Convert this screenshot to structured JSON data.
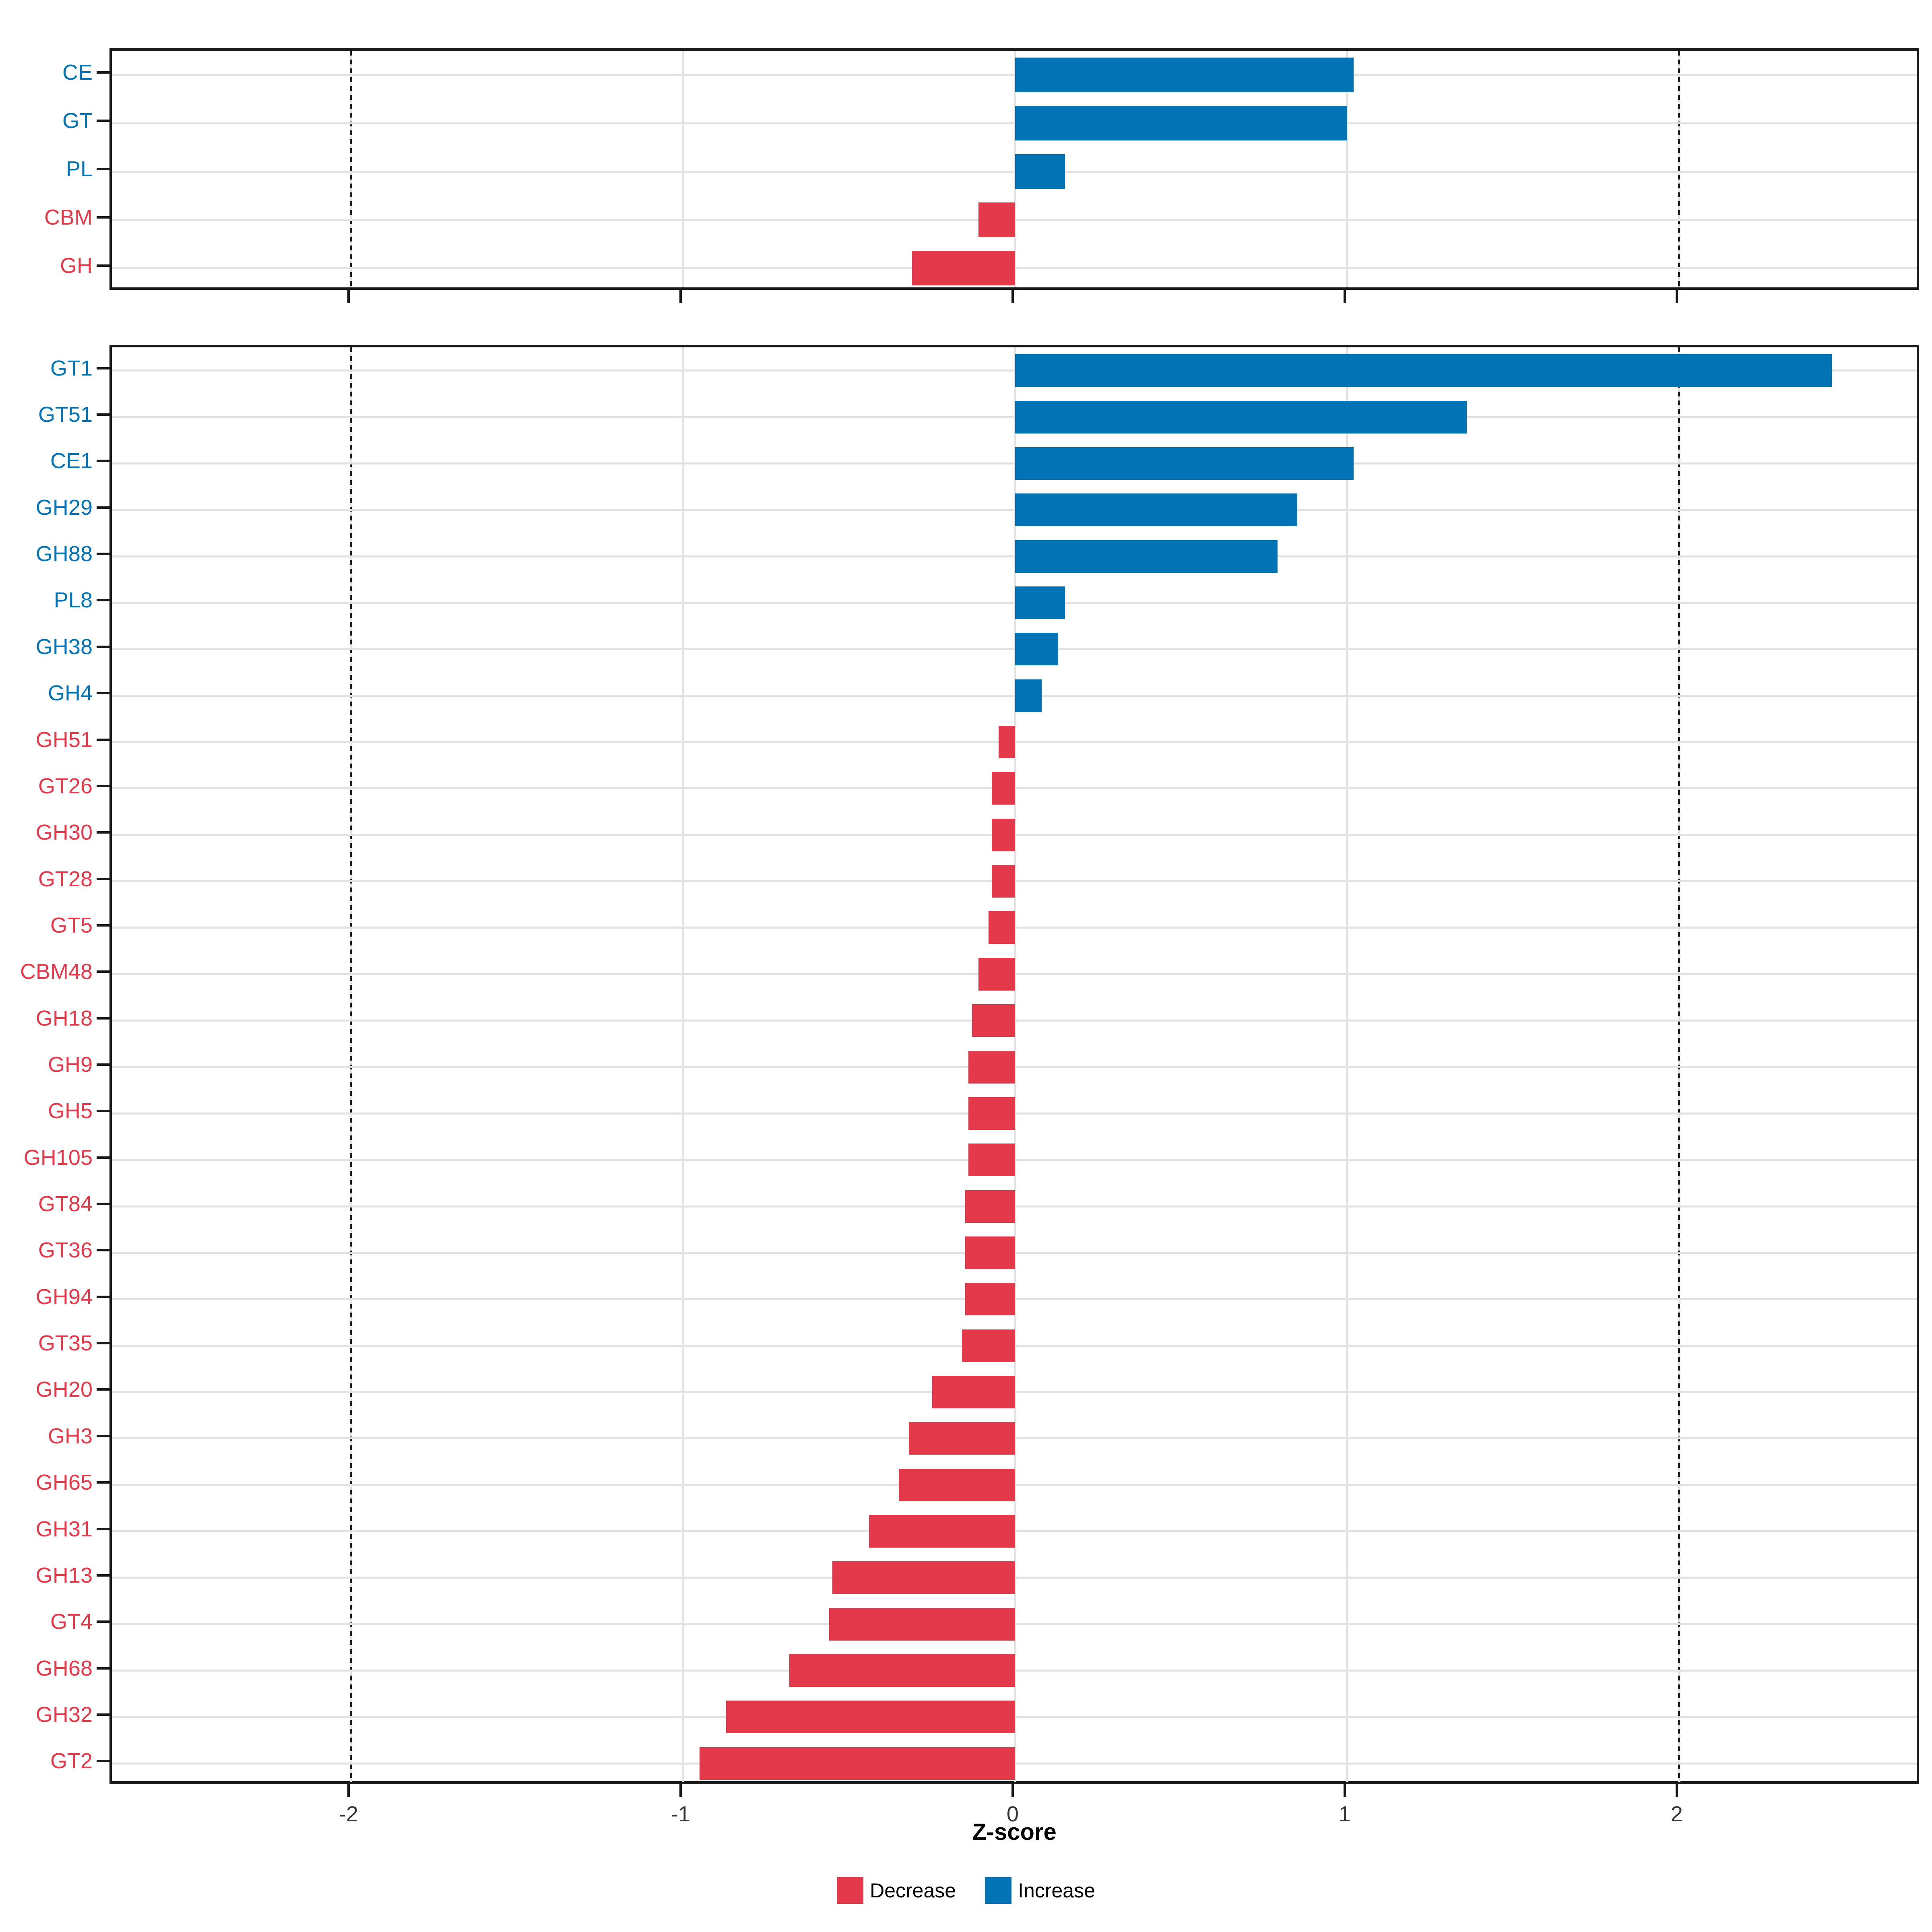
{
  "figure": {
    "xlabel": "Z-score",
    "background": "#FFFFFF"
  },
  "colors": {
    "increase": "#0274B6",
    "decrease": "#E4394A",
    "grid": "#E2E2E2",
    "frame": "#1A1A1A",
    "axis_text": "#333333"
  },
  "legend": {
    "items": [
      {
        "label": "Decrease",
        "color": "#E4394A"
      },
      {
        "label": "Increase",
        "color": "#0274B6"
      }
    ]
  },
  "chart_data": [
    {
      "type": "bar",
      "orientation": "horizontal",
      "panel": "enzyme-class-top",
      "categories": [
        "CE",
        "GT",
        "PL",
        "CBM",
        "GH"
      ],
      "values": [
        1.02,
        1.0,
        0.15,
        -0.11,
        -0.31
      ],
      "bar_color_rule": {
        "positive": "Increase",
        "negative": "Decrease"
      },
      "xlabel": "Z-score",
      "xlim": [
        -2.72,
        2.73
      ],
      "x_ticks": [
        -2,
        -1,
        0,
        1,
        2
      ],
      "x_tick_labels_shown": false,
      "dashed_reference_lines_x": [
        -2,
        2
      ],
      "grid": "major"
    },
    {
      "type": "bar",
      "orientation": "horizontal",
      "panel": "enzyme-family-bottom",
      "categories": [
        "GT1",
        "GT51",
        "CE1",
        "GH29",
        "GH88",
        "PL8",
        "GH38",
        "GH4",
        "GH51",
        "GT26",
        "GH30",
        "GT28",
        "GT5",
        "CBM48",
        "GH18",
        "GH9",
        "GH5",
        "GH105",
        "GT84",
        "GT36",
        "GH94",
        "GT35",
        "GH20",
        "GH3",
        "GH65",
        "GH31",
        "GH13",
        "GT4",
        "GH68",
        "GH32",
        "GT2"
      ],
      "values": [
        2.46,
        1.36,
        1.02,
        0.85,
        0.79,
        0.15,
        0.13,
        0.08,
        -0.05,
        -0.07,
        -0.07,
        -0.07,
        -0.08,
        -0.11,
        -0.13,
        -0.14,
        -0.14,
        -0.14,
        -0.15,
        -0.15,
        -0.15,
        -0.16,
        -0.25,
        -0.32,
        -0.35,
        -0.44,
        -0.55,
        -0.56,
        -0.68,
        -0.87,
        -0.95
      ],
      "bar_color_rule": {
        "positive": "Increase",
        "negative": "Decrease"
      },
      "xlabel": "Z-score",
      "xlim": [
        -2.72,
        2.73
      ],
      "x_ticks": [
        -2,
        -1,
        0,
        1,
        2
      ],
      "x_tick_labels": [
        "-2",
        "-1",
        "0",
        "1",
        "2"
      ],
      "dashed_reference_lines_x": [
        -2,
        2
      ],
      "grid": "major"
    }
  ]
}
